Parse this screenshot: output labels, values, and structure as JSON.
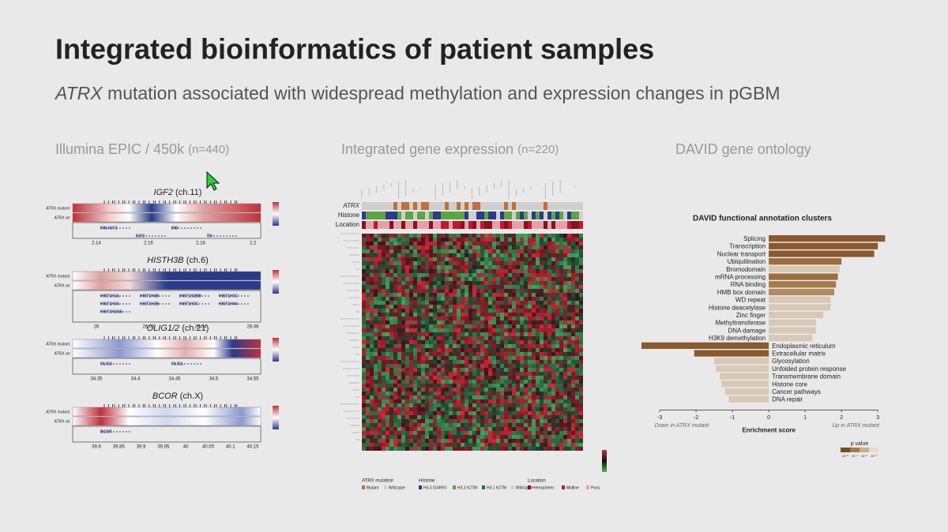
{
  "header": {
    "title": "Integrated bioinformatics of patient samples",
    "subtitle_gene": "ATRX",
    "subtitle_rest": " mutation associated with widespread methylation and expression changes in pGBM"
  },
  "panels": [
    {
      "title": "Illumina EPIC / 450k ",
      "note": "(n=440)"
    },
    {
      "title": "Integrated gene expression ",
      "note": "(n=220)"
    },
    {
      "title": "DAVID gene ontology"
    }
  ],
  "methylation": {
    "row_labels": [
      "ATRX mutant",
      "ATRX wt"
    ],
    "regions": [
      {
        "gene": "IGF2",
        "chr": " (ch.11)",
        "ticks": [
          "2.14",
          "2.16",
          "2.18",
          "2.2"
        ],
        "genes": [
          "INS-IGF2",
          "IGF2",
          "INS",
          "TH"
        ]
      },
      {
        "gene": "HISTH3B",
        "chr": " (ch.6)",
        "ticks": [
          "26",
          "26.02",
          "26.04",
          "26.06"
        ],
        "genes": [
          "HIST1H1A",
          "HIST1H4B",
          "HIST1H2BB",
          "HIST1H1C",
          "HIST1H3A",
          "HIST1H3B",
          "HIST1H3C",
          "HIST1H4A",
          "HIST1H2AB"
        ]
      },
      {
        "gene": "OLIG1/2",
        "chr": " (ch.21)",
        "ticks": [
          "34.35",
          "34.4",
          "34.45",
          "34.5",
          "34.55"
        ],
        "genes": [
          "OLIG2",
          "OLIG1"
        ]
      },
      {
        "gene": "BCOR",
        "chr": " (ch.X)",
        "ticks": [
          "39.8",
          "39.85",
          "39.9",
          "39.95",
          "40",
          "40.05",
          "40.1",
          "40.15"
        ],
        "genes": [
          "BCOR"
        ]
      }
    ]
  },
  "expression": {
    "row_labels": [
      "ATRX",
      "Histone",
      "Location"
    ],
    "legend": [
      {
        "title": "ATRX mutation",
        "items": [
          "Mutant",
          "Wild-type"
        ]
      },
      {
        "title": "Histone",
        "items": [
          "H3.3 G34R/V",
          "H3.3 K27M",
          "H3.1 K27M",
          "Wild-type"
        ]
      },
      {
        "title": "Location",
        "items": [
          "Hemispheric",
          "Midline",
          "Pons"
        ]
      }
    ]
  },
  "chart_data": {
    "type": "bar",
    "orientation": "horizontal",
    "title": "DAVID functional annotation clusters",
    "categories": [
      "Splicing",
      "Transcription",
      "Nuclear transport",
      "Ubiquitination",
      "Bromodomain",
      "mRNA processing",
      "RNA binding",
      "HMB box domain",
      "WD repeat",
      "Histone deacetylase",
      "Zinc finger",
      "Methyltransferase",
      "DNA damage",
      "H3K9 demethylation",
      "Endoplasmic reticulum",
      "Extracellular matrix",
      "Glycosylation",
      "Unfolded protein response",
      "Transmembrane domain",
      "Histone core",
      "Cancer pathways",
      "DNA repair"
    ],
    "values": [
      3.2,
      3.0,
      2.9,
      2.0,
      1.95,
      1.9,
      1.85,
      1.8,
      1.7,
      1.7,
      1.5,
      1.3,
      1.3,
      1.2,
      -3.5,
      -2.05,
      -1.5,
      -1.45,
      -1.35,
      -1.3,
      -1.2,
      -1.1
    ],
    "colors": [
      "#8a5a2e",
      "#8a5a2e",
      "#8a5a2e",
      "#9c6d3e",
      "#d8c8b6",
      "#9c6d3e",
      "#a57a4c",
      "#b08a62",
      "#d8c8b6",
      "#d8c8b6",
      "#d8c8b6",
      "#d8c8b6",
      "#d8c8b6",
      "#d8c8b6",
      "#8a5a2e",
      "#8a5a2e",
      "#d8c8b6",
      "#d8c8b6",
      "#d8c8b6",
      "#d8c8b6",
      "#d8c8b6",
      "#d8c8b6"
    ],
    "xlim": [
      -3.5,
      3.3
    ],
    "xticks": [
      -3,
      -2,
      -1,
      0,
      1,
      2,
      3
    ],
    "xlabel": "Enrichment score",
    "left_note": "Down in ATRX mutant",
    "right_note": "Up in ATRX mutant",
    "pvalue_title": "p value",
    "pvalue_ticks": [
      "10⁻⁵",
      "10⁻⁴",
      "10⁻³",
      "10⁻²"
    ],
    "pvalue_colors": [
      "#7a4a1e",
      "#a57a4c",
      "#c9ad8e",
      "#e6dbcf"
    ]
  }
}
